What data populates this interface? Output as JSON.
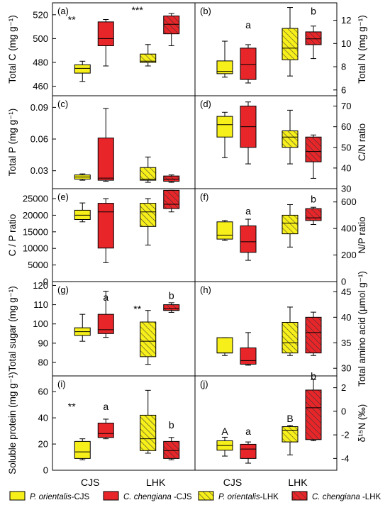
{
  "chart_data": {
    "type": "boxplot",
    "groups": [
      "CJS",
      "LHK"
    ],
    "legend": [
      {
        "label_italic": "P. orientalis",
        "label_rest": "-CJS",
        "color": "#f7ef1a",
        "hatch": false
      },
      {
        "label_italic": "C. chengiana",
        "label_rest": " -CJS",
        "color": "#e8262a",
        "hatch": false
      },
      {
        "label_italic": "P. orientalis",
        "label_rest": "-LHK",
        "color": "#f7ef1a",
        "hatch": true
      },
      {
        "label_italic": "C. chengiana",
        "label_rest": " -LHK",
        "color": "#e8262a",
        "hatch": true
      }
    ],
    "panels": [
      {
        "tag": "(a)",
        "ylabel": "Total C  (mg g⁻¹)",
        "ylim": [
          452,
          530
        ],
        "ticks": [
          460,
          480,
          500,
          520
        ],
        "boxes": [
          {
            "group": "CJS",
            "species": "P. orientalis",
            "min": 464,
            "q1": 471,
            "median": 475,
            "q3": 478,
            "max": 481
          },
          {
            "group": "CJS",
            "species": "C. chengiana",
            "min": 477,
            "q1": 494,
            "median": 500,
            "q3": 514,
            "max": 516
          },
          {
            "group": "LHK",
            "species": "P. orientalis",
            "min": 477,
            "q1": 480,
            "median": 481,
            "q3": 487,
            "max": 495
          },
          {
            "group": "LHK",
            "species": "C. chengiana",
            "min": 494,
            "q1": 504,
            "median": 512,
            "q3": 519,
            "max": 521
          }
        ],
        "annotations": [
          {
            "group": "CJS",
            "text": "**",
            "y": 513
          },
          {
            "group": "LHK",
            "text": "***",
            "y": 521
          }
        ]
      },
      {
        "tag": "(b)",
        "ylabel": "Total N  (mg g⁻¹)",
        "ylim": [
          5.5,
          13.5
        ],
        "ticks": [
          6,
          8,
          10,
          12
        ],
        "boxes": [
          {
            "group": "CJS",
            "species": "P. orientalis",
            "min": 7.1,
            "q1": 7.4,
            "median": 7.6,
            "q3": 8.5,
            "max": 10.2
          },
          {
            "group": "CJS",
            "species": "C. chengiana",
            "min": 6.6,
            "q1": 6.9,
            "median": 8.2,
            "q3": 9.6,
            "max": 9.9
          },
          {
            "group": "LHK",
            "species": "P. orientalis",
            "min": 7.2,
            "q1": 8.6,
            "median": 9.6,
            "q3": 11.3,
            "max": 13.1
          },
          {
            "group": "LHK",
            "species": "C. chengiana",
            "min": 8.7,
            "q1": 9.9,
            "median": 10.4,
            "q3": 11.0,
            "max": 11.5
          }
        ],
        "annotations": [
          {
            "group": "CJS",
            "text": "a",
            "y": 11.3
          },
          {
            "group": "LHK",
            "text": "b",
            "y": 12.5
          }
        ]
      },
      {
        "tag": "(c)",
        "ylabel": "Total P  (mg g⁻¹)",
        "ylim": [
          0.013,
          0.101
        ],
        "ticks": [
          0.03,
          0.06,
          0.09
        ],
        "boxes": [
          {
            "group": "CJS",
            "species": "P. orientalis",
            "min": 0.021,
            "q1": 0.022,
            "median": 0.024,
            "q3": 0.026,
            "max": 0.027
          },
          {
            "group": "CJS",
            "species": "C. chengiana",
            "min": 0.02,
            "q1": 0.021,
            "median": 0.023,
            "q3": 0.061,
            "max": 0.089
          },
          {
            "group": "LHK",
            "species": "P. orientalis",
            "min": 0.019,
            "q1": 0.021,
            "median": 0.022,
            "q3": 0.033,
            "max": 0.043
          },
          {
            "group": "LHK",
            "species": "C. chengiana",
            "min": 0.019,
            "q1": 0.02,
            "median": 0.022,
            "q3": 0.025,
            "max": 0.026
          }
        ],
        "annotations": []
      },
      {
        "tag": "(d)",
        "ylabel": "C/N ratio",
        "ylim": [
          30,
          75
        ],
        "ticks": [
          30,
          40,
          50,
          60,
          70
        ],
        "boxes": [
          {
            "group": "CJS",
            "species": "P. orientalis",
            "min": 45,
            "q1": 55,
            "median": 61,
            "q3": 65,
            "max": 67
          },
          {
            "group": "CJS",
            "species": "C. chengiana",
            "min": 42,
            "q1": 50,
            "median": 60,
            "q3": 70,
            "max": 72
          },
          {
            "group": "LHK",
            "species": "P. orientalis",
            "min": 42,
            "q1": 50,
            "median": 55,
            "q3": 58,
            "max": 68
          },
          {
            "group": "LHK",
            "species": "C. chengiana",
            "min": 35,
            "q1": 43,
            "median": 48,
            "q3": 55,
            "max": 56
          }
        ],
        "annotations": []
      },
      {
        "tag": "(e)",
        "ylabel": "C / P ratio",
        "ylim": [
          0,
          28000
        ],
        "ticks": [
          0,
          5000,
          10000,
          15000,
          20000,
          25000
        ],
        "boxes": [
          {
            "group": "CJS",
            "species": "P. orientalis",
            "min": 18000,
            "q1": 18700,
            "median": 20000,
            "q3": 21500,
            "max": 23700
          },
          {
            "group": "CJS",
            "species": "C. chengiana",
            "min": 5700,
            "q1": 10100,
            "median": 21000,
            "q3": 23600,
            "max": 25000
          },
          {
            "group": "LHK",
            "species": "P. orientalis",
            "min": 11000,
            "q1": 16600,
            "median": 21000,
            "q3": 23600,
            "max": 25000
          },
          {
            "group": "LHK",
            "species": "C. chengiana",
            "min": 21000,
            "q1": 22000,
            "median": 23300,
            "q3": 27500,
            "max": 27500
          }
        ],
        "annotations": []
      },
      {
        "tag": "(f)",
        "ylabel": "N/P ratio",
        "ylim": [
          0,
          700
        ],
        "ticks": [
          0,
          200,
          400,
          600
        ],
        "boxes": [
          {
            "group": "CJS",
            "species": "P. orientalis",
            "min": 310,
            "q1": 320,
            "median": 350,
            "q3": 450,
            "max": 460
          },
          {
            "group": "CJS",
            "species": "C. chengiana",
            "min": 160,
            "q1": 220,
            "median": 300,
            "q3": 420,
            "max": 470
          },
          {
            "group": "LHK",
            "species": "P. orientalis",
            "min": 260,
            "q1": 360,
            "median": 440,
            "q3": 500,
            "max": 580
          },
          {
            "group": "LHK",
            "species": "C. chengiana",
            "min": 430,
            "q1": 460,
            "median": 480,
            "q3": 550,
            "max": 560
          }
        ],
        "annotations": [
          {
            "group": "CJS",
            "text": "a",
            "y": 505
          },
          {
            "group": "LHK",
            "text": "b",
            "y": 595
          }
        ]
      },
      {
        "tag": "(g)",
        "ylabel": "Total sugar  (mg g⁻¹)",
        "ylim": [
          73,
          122
        ],
        "ticks": [
          80,
          90,
          100,
          110,
          120
        ],
        "boxes": [
          {
            "group": "CJS",
            "species": "P. orientalis",
            "min": 91,
            "q1": 94,
            "median": 96,
            "q3": 98,
            "max": 105
          },
          {
            "group": "CJS",
            "species": "C. chengiana",
            "min": 93,
            "q1": 95,
            "median": 97,
            "q3": 105,
            "max": 117
          },
          {
            "group": "LHK",
            "species": "P. orientalis",
            "min": 79,
            "q1": 83,
            "median": 91,
            "q3": 101,
            "max": 107
          },
          {
            "group": "LHK",
            "species": "C. chengiana",
            "min": 106,
            "q1": 107,
            "median": 108,
            "q3": 110,
            "max": 111
          }
        ],
        "annotations": [
          {
            "group": "CJS",
            "text": "a",
            "y": 112
          },
          {
            "group": "LHK",
            "text": "**",
            "y": 106
          },
          {
            "group": "LHK",
            "text": "b",
            "y": 113
          }
        ]
      },
      {
        "tag": "(h)",
        "ylabel": "Total amino acid  (μmol g⁻¹)",
        "ylim": [
          28.5,
          47
        ],
        "ticks": [
          30,
          35,
          40,
          45
        ],
        "boxes": [
          {
            "group": "CJS",
            "species": "P. orientalis",
            "min": 32.5,
            "q1": 33.0,
            "median": 33.0,
            "q3": 36.0,
            "max": 36.0
          },
          {
            "group": "CJS",
            "species": "C. chengiana",
            "min": 30.6,
            "q1": 30.8,
            "median": 31.5,
            "q3": 34.0,
            "max": 37.0
          },
          {
            "group": "LHK",
            "species": "P. orientalis",
            "min": 32.5,
            "q1": 33.0,
            "median": 35.0,
            "q3": 39.0,
            "max": 42.0
          },
          {
            "group": "LHK",
            "species": "C. chengiana",
            "min": 32.5,
            "q1": 33.0,
            "median": 37.0,
            "q3": 40.0,
            "max": 41.0
          }
        ],
        "annotations": []
      },
      {
        "tag": "(i)",
        "ylabel": "Soluble protein  (mg g⁻¹)",
        "ylim": [
          0,
          72
        ],
        "ticks": [
          0,
          20,
          40,
          60
        ],
        "boxes": [
          {
            "group": "CJS",
            "species": "P. orientalis",
            "min": 8,
            "q1": 9,
            "median": 14,
            "q3": 22,
            "max": 24
          },
          {
            "group": "CJS",
            "species": "C. chengiana",
            "min": 24,
            "q1": 25,
            "median": 28,
            "q3": 36,
            "max": 39
          },
          {
            "group": "LHK",
            "species": "P. orientalis",
            "min": 13,
            "q1": 15,
            "median": 24,
            "q3": 42,
            "max": 61
          },
          {
            "group": "LHK",
            "species": "C. chengiana",
            "min": 8,
            "q1": 9,
            "median": 15,
            "q3": 22,
            "max": 25
          }
        ],
        "annotations": [
          {
            "group": "CJS",
            "text": "**",
            "y": 46
          },
          {
            "group": "CJS",
            "text": "a",
            "y": 46
          },
          {
            "group": "LHK",
            "text": "b",
            "y": 32
          }
        ]
      },
      {
        "tag": "(j)",
        "ylabel": "δ¹⁵N (‰)",
        "ylim": [
          -5,
          3
        ],
        "ticks": [
          -4,
          -2,
          0,
          2
        ],
        "boxes": [
          {
            "group": "CJS",
            "species": "P. orientalis",
            "min": -3.8,
            "q1": -3.3,
            "median": -2.9,
            "q3": -2.5,
            "max": -2.2
          },
          {
            "group": "CJS",
            "species": "C. chengiana",
            "min": -4.4,
            "q1": -4.0,
            "median": -3.2,
            "q3": -2.8,
            "max": -2.6
          },
          {
            "group": "LHK",
            "species": "P. orientalis",
            "min": -3.7,
            "q1": -2.6,
            "median": -1.6,
            "q3": -1.3,
            "max": -1.2
          },
          {
            "group": "LHK",
            "species": "C. chengiana",
            "min": -2.5,
            "q1": -2.4,
            "median": 0.3,
            "q3": 1.8,
            "max": 2.7
          }
        ],
        "annotations": [
          {
            "group": "CJS",
            "text": "A",
            "y": -2.0
          },
          {
            "group": "CJS",
            "text": "a",
            "y": -2.0
          },
          {
            "group": "LHK",
            "text": "B",
            "y": -0.9
          },
          {
            "group": "LHK",
            "text": "b",
            "y": 2.7
          }
        ]
      }
    ]
  }
}
